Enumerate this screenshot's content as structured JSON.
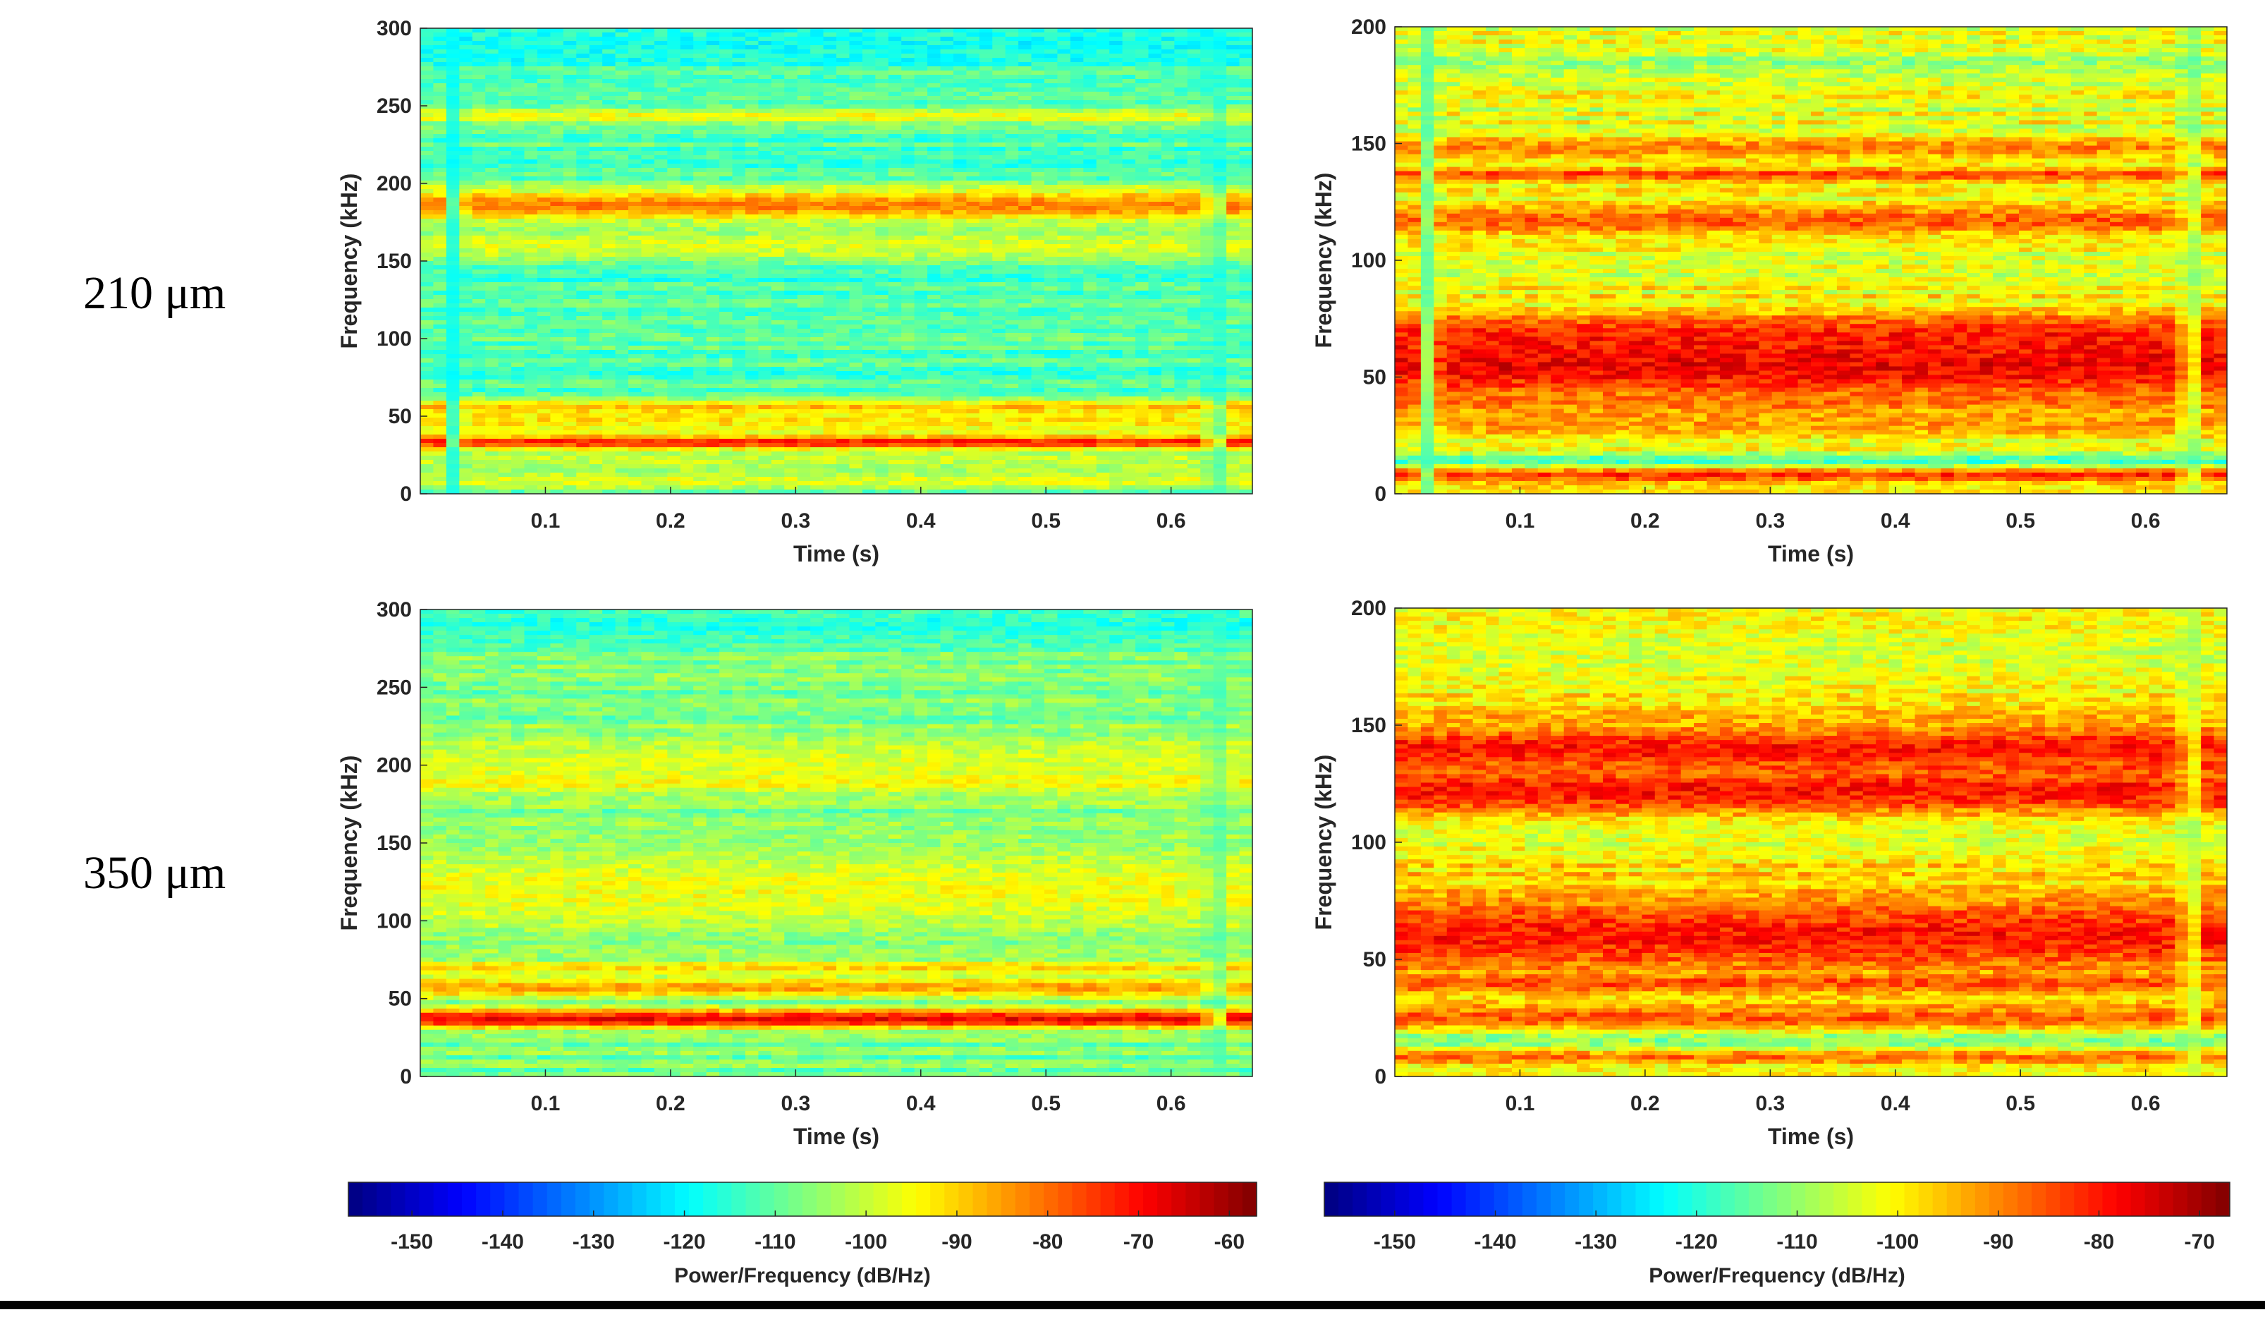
{
  "row_labels": [
    "210 μm",
    "350 μm"
  ],
  "chart_data": [
    {
      "type": "heatmap",
      "name": "spectrogram-top-left",
      "xlabel": "Time (s)",
      "ylabel": "Frequency (kHz)",
      "xlim": [
        0,
        0.665
      ],
      "ylim": [
        0,
        300
      ],
      "xticks": [
        0.1,
        0.2,
        0.3,
        0.4,
        0.5,
        0.6
      ],
      "yticks": [
        0,
        50,
        100,
        150,
        200,
        250,
        300
      ],
      "clim": [
        -157,
        -57
      ],
      "base_level": -112,
      "noise": 5,
      "bands": [
        {
          "freq": 33,
          "width": 5,
          "level": -63
        },
        {
          "freq": 47,
          "width": 10,
          "level": -92
        },
        {
          "freq": 56,
          "width": 4,
          "level": -88
        },
        {
          "freq": 186,
          "width": 11,
          "level": -82
        },
        {
          "freq": 160,
          "width": 10,
          "level": -98
        },
        {
          "freq": 243,
          "width": 5,
          "level": -95
        },
        {
          "freq": 22,
          "width": 8,
          "level": -100
        },
        {
          "freq": 8,
          "width": 6,
          "level": -97
        },
        {
          "freq": 290,
          "width": 14,
          "level": -118
        }
      ],
      "vertical_stripes": [
        {
          "time": 0.028,
          "level": -120
        },
        {
          "time": 0.635,
          "level": -118
        }
      ]
    },
    {
      "type": "heatmap",
      "name": "spectrogram-top-right",
      "xlabel": "Time (s)",
      "ylabel": "Frequency (kHz)",
      "xlim": [
        0,
        0.665
      ],
      "ylim": [
        0,
        200
      ],
      "xticks": [
        0.1,
        0.2,
        0.3,
        0.4,
        0.5,
        0.6
      ],
      "yticks": [
        0,
        50,
        100,
        150,
        200
      ],
      "clim": [
        -157,
        -67
      ],
      "base_level": -103,
      "noise": 6,
      "bands": [
        {
          "freq": 57,
          "width": 18,
          "level": -76
        },
        {
          "freq": 65,
          "width": 8,
          "level": -80
        },
        {
          "freq": 117,
          "width": 6,
          "level": -86
        },
        {
          "freq": 137,
          "width": 3,
          "level": -84
        },
        {
          "freq": 148,
          "width": 5,
          "level": -90
        },
        {
          "freq": 40,
          "width": 4,
          "level": -88
        },
        {
          "freq": 30,
          "width": 6,
          "level": -92
        },
        {
          "freq": 14,
          "width": 3,
          "level": -118
        },
        {
          "freq": 8,
          "width": 3,
          "level": -82
        },
        {
          "freq": 185,
          "width": 4,
          "level": -110
        }
      ],
      "vertical_stripes": [
        {
          "time": 0.028,
          "level": -118
        },
        {
          "time": 0.635,
          "level": -116
        }
      ]
    },
    {
      "type": "heatmap",
      "name": "spectrogram-bottom-left",
      "xlabel": "Time (s)",
      "ylabel": "Frequency (kHz)",
      "xlim": [
        0,
        0.665
      ],
      "ylim": [
        0,
        300
      ],
      "xticks": [
        0.1,
        0.2,
        0.3,
        0.4,
        0.5,
        0.6
      ],
      "yticks": [
        0,
        50,
        100,
        150,
        200,
        250,
        300
      ],
      "clim": [
        -157,
        -57
      ],
      "base_level": -108,
      "noise": 5,
      "bands": [
        {
          "freq": 37,
          "width": 6,
          "level": -68
        },
        {
          "freq": 57,
          "width": 6,
          "level": -85
        },
        {
          "freq": 70,
          "width": 4,
          "level": -90
        },
        {
          "freq": 190,
          "width": 6,
          "level": -85
        },
        {
          "freq": 120,
          "width": 30,
          "level": -96
        },
        {
          "freq": 200,
          "width": 20,
          "level": -98
        },
        {
          "freq": 290,
          "width": 12,
          "level": -116
        }
      ],
      "vertical_stripes": [
        {
          "time": 0.635,
          "level": -114
        }
      ]
    },
    {
      "type": "heatmap",
      "name": "spectrogram-bottom-right",
      "xlabel": "Time (s)",
      "ylabel": "Frequency (kHz)",
      "xlim": [
        0,
        0.665
      ],
      "ylim": [
        0,
        200
      ],
      "xticks": [
        0.1,
        0.2,
        0.3,
        0.4,
        0.5,
        0.6
      ],
      "yticks": [
        0,
        50,
        100,
        150,
        200
      ],
      "clim": [
        -157,
        -67
      ],
      "base_level": -100,
      "noise": 6,
      "bands": [
        {
          "freq": 140,
          "width": 10,
          "level": -80
        },
        {
          "freq": 122,
          "width": 10,
          "level": -80
        },
        {
          "freq": 60,
          "width": 16,
          "level": -80
        },
        {
          "freq": 40,
          "width": 3,
          "level": -84
        },
        {
          "freq": 25,
          "width": 5,
          "level": -86
        },
        {
          "freq": 15,
          "width": 4,
          "level": -112
        },
        {
          "freq": 8,
          "width": 3,
          "level": -88
        },
        {
          "freq": 180,
          "width": 14,
          "level": -104
        }
      ],
      "vertical_stripes": [
        {
          "time": 0.635,
          "level": -112
        }
      ]
    }
  ],
  "colorbars": [
    {
      "name": "colorbar-left",
      "range": [
        -157,
        -57
      ],
      "ticks": [
        -150,
        -140,
        -130,
        -120,
        -110,
        -100,
        -90,
        -80,
        -70,
        -60
      ],
      "label": "Power/Frequency (dB/Hz)"
    },
    {
      "name": "colorbar-right",
      "range": [
        -157,
        -67
      ],
      "ticks": [
        -150,
        -140,
        -130,
        -120,
        -110,
        -100,
        -90,
        -80,
        -70
      ],
      "label": "Power/Frequency (dB/Hz)"
    }
  ]
}
